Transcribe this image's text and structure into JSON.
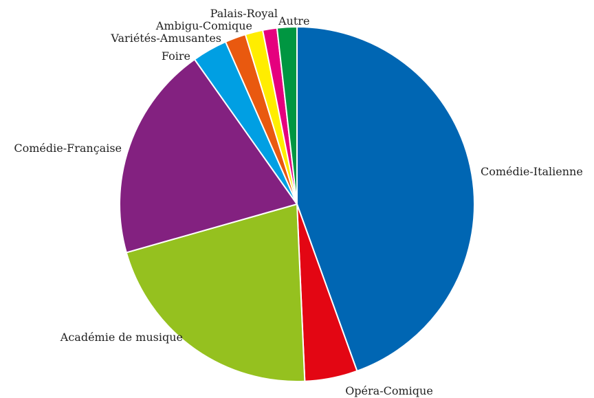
{
  "chart_data": {
    "type": "pie",
    "title": "",
    "slices": [
      {
        "label": "Comédie-Italienne",
        "value": 44.5,
        "color": "#0066b3"
      },
      {
        "label": "Opéra-Comique",
        "value": 4.8,
        "color": "#e30613"
      },
      {
        "label": "Académie de musique",
        "value": 21.3,
        "color": "#95c11f"
      },
      {
        "label": "Comédie-Française",
        "value": 19.6,
        "color": "#832180"
      },
      {
        "label": "Foire",
        "value": 3.2,
        "color": "#009fe3"
      },
      {
        "label": "Variétés-Amusantes",
        "value": 1.9,
        "color": "#e9590f"
      },
      {
        "label": "Ambigu-Comique",
        "value": 1.6,
        "color": "#ffed00"
      },
      {
        "label": "Palais-Royal",
        "value": 1.3,
        "color": "#e5007e"
      },
      {
        "label": "Autre",
        "value": 1.8,
        "color": "#009641"
      }
    ]
  }
}
